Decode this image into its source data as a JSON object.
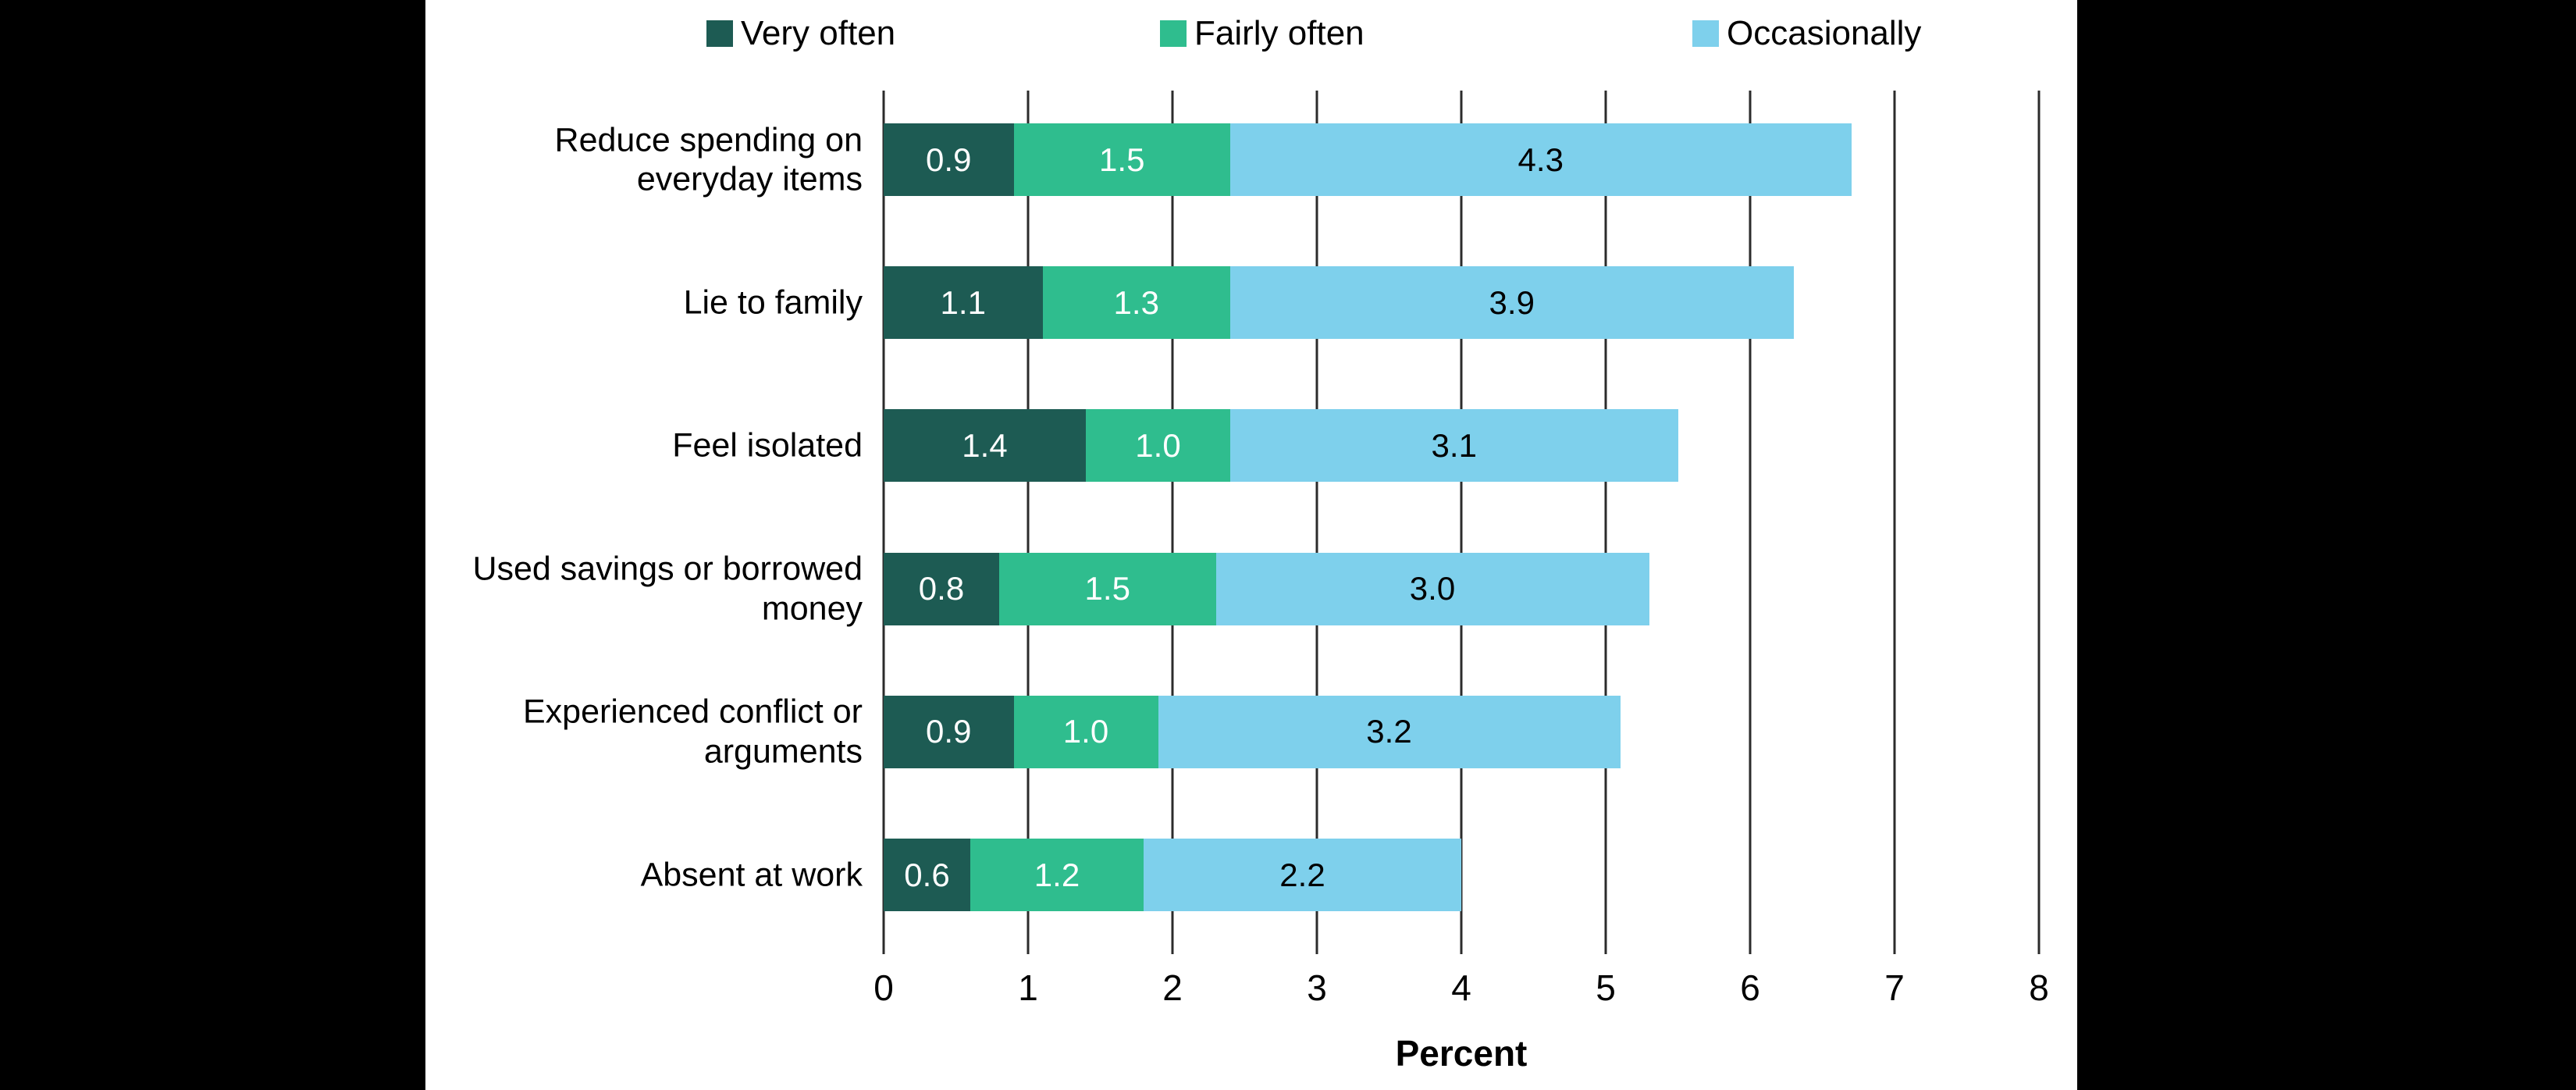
{
  "chart_data": {
    "type": "bar",
    "orientation": "horizontal",
    "stacked": true,
    "title": "",
    "xlabel": "Percent",
    "ylabel": "",
    "xlim": [
      0,
      8
    ],
    "xticks": [
      0,
      1,
      2,
      3,
      4,
      5,
      6,
      7,
      8
    ],
    "grid": true,
    "legend_position": "top",
    "categories": [
      "Reduce spending on everyday items",
      "Lie to family",
      "Feel isolated",
      "Used savings or borrowed money",
      "Experienced conflict or arguments",
      "Absent at work"
    ],
    "series": [
      {
        "name": "Very often",
        "color": "#1d5b53",
        "label_color": "#ffffff",
        "values": [
          0.9,
          1.1,
          1.4,
          0.8,
          0.9,
          0.6
        ]
      },
      {
        "name": "Fairly often",
        "color": "#2fbd8e",
        "label_color": "#ffffff",
        "values": [
          1.5,
          1.3,
          1.0,
          1.5,
          1.0,
          1.2
        ]
      },
      {
        "name": "Occasionally",
        "color": "#7ed0ec",
        "label_color": "#000000",
        "values": [
          4.3,
          3.9,
          3.1,
          3.0,
          3.2,
          2.2
        ]
      }
    ],
    "totals": [
      6.7,
      6.3,
      5.5,
      5.3,
      5.1,
      4.0
    ]
  }
}
